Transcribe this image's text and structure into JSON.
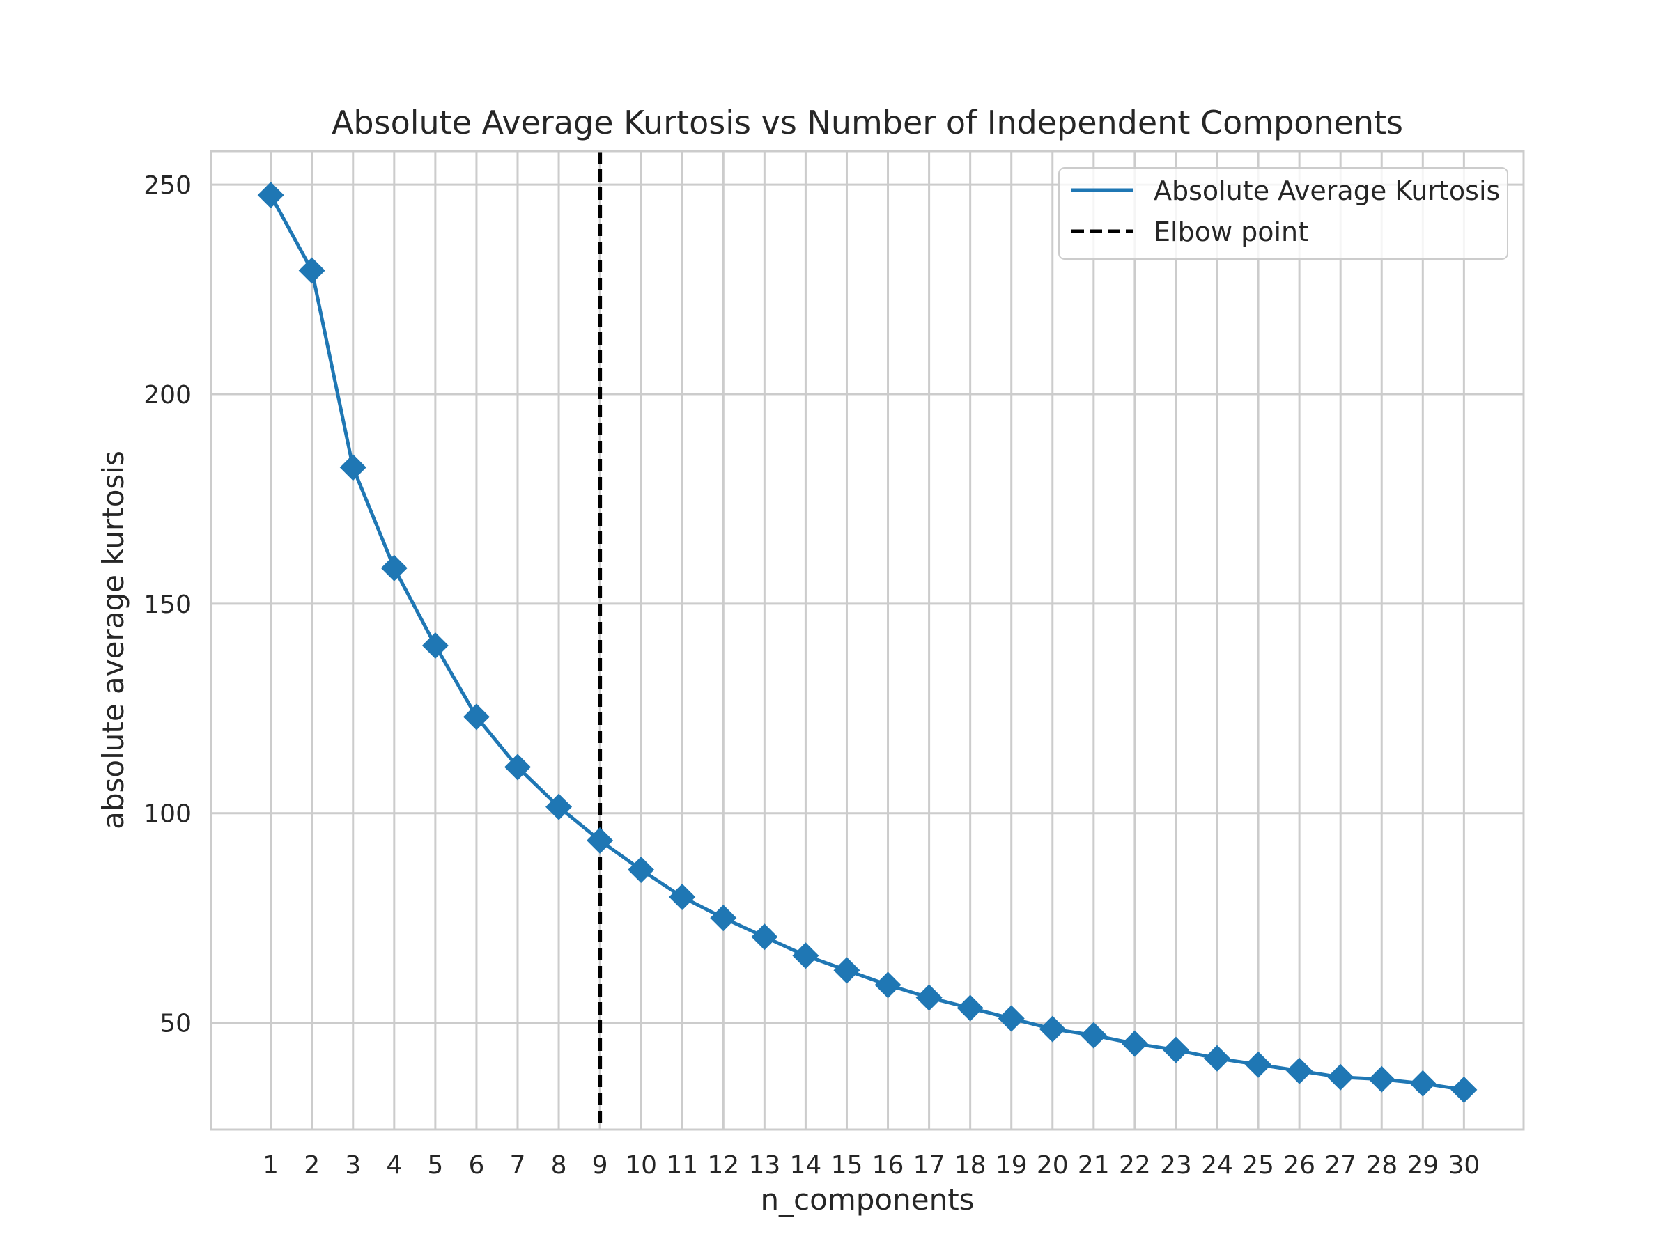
{
  "chart_data": {
    "type": "line",
    "title": "Absolute Average Kurtosis vs Number of Independent Components",
    "xlabel": "n_components",
    "ylabel": "absolute average kurtosis",
    "x": [
      1,
      2,
      3,
      4,
      5,
      6,
      7,
      8,
      9,
      10,
      11,
      12,
      13,
      14,
      15,
      16,
      17,
      18,
      19,
      20,
      21,
      22,
      23,
      24,
      25,
      26,
      27,
      28,
      29,
      30
    ],
    "series": [
      {
        "name": "Absolute Average Kurtosis",
        "color": "#1f77b4",
        "marker": "diamond",
        "values": [
          247.5,
          229.5,
          182.5,
          158.5,
          140,
          123,
          111,
          101.5,
          93.5,
          86.5,
          80,
          75,
          70.5,
          66,
          62.5,
          59,
          56,
          53.5,
          51,
          48.5,
          47,
          45,
          43.5,
          41.5,
          40,
          38.5,
          37,
          36.5,
          35.5,
          34
        ]
      }
    ],
    "elbow": {
      "name": "Elbow point",
      "x": 9,
      "color": "#000000",
      "style": "dashed"
    },
    "xticks": [
      1,
      2,
      3,
      4,
      5,
      6,
      7,
      8,
      9,
      10,
      11,
      12,
      13,
      14,
      15,
      16,
      17,
      18,
      19,
      20,
      21,
      22,
      23,
      24,
      25,
      26,
      27,
      28,
      29,
      30
    ],
    "yticks": [
      50,
      100,
      150,
      200,
      250
    ],
    "xlim": [
      -0.45,
      31.45
    ],
    "ylim": [
      24.5,
      258
    ],
    "grid": true,
    "legend_position": "top-right"
  }
}
